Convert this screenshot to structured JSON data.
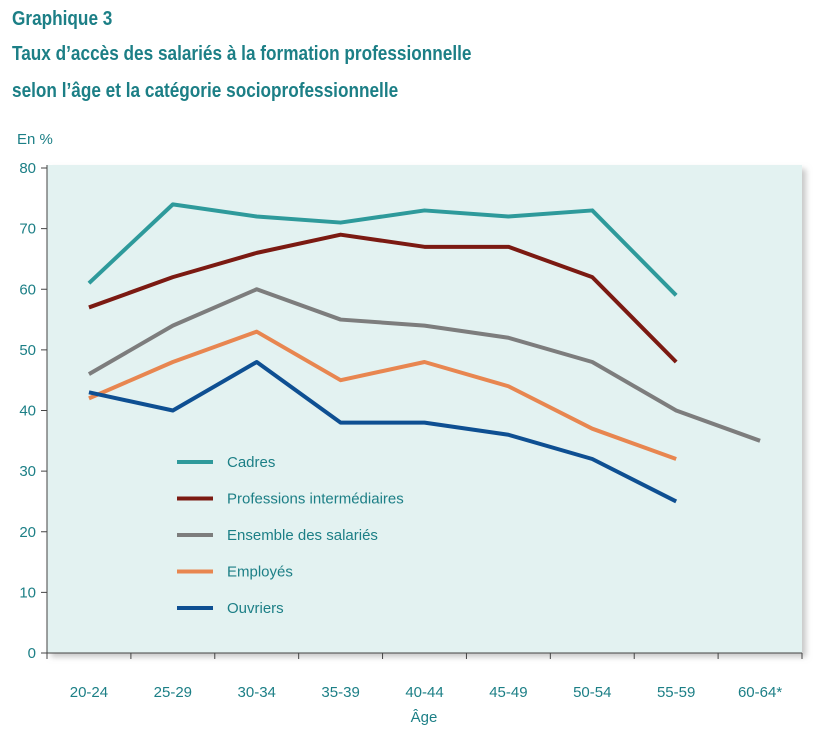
{
  "header": {
    "label": "Graphique 3",
    "title_line1": "Taux d’accès des salariés à la formation professionnelle",
    "title_line2": "selon l’âge et la catégorie socioprofessionnelle"
  },
  "chart_data": {
    "type": "line",
    "ylabel": "En %",
    "xlabel": "Âge",
    "ylim": [
      0,
      80
    ],
    "yticks": [
      0,
      10,
      20,
      30,
      40,
      50,
      60,
      70,
      80
    ],
    "categories": [
      "20-24",
      "25-29",
      "30-34",
      "35-39",
      "40-44",
      "45-49",
      "50-54",
      "55-59",
      "60-64*"
    ],
    "grid": false,
    "legend_position": "inside-left",
    "series": [
      {
        "name": "Cadres",
        "color": "#2e9a9b",
        "values": [
          61,
          74,
          72,
          71,
          73,
          72,
          73,
          59,
          null
        ]
      },
      {
        "name": "Professions intermédiaires",
        "color": "#7b1a12",
        "values": [
          57,
          62,
          66,
          69,
          67,
          67,
          62,
          48,
          null
        ]
      },
      {
        "name": "Ensemble des salariés",
        "color": "#7d7d7d",
        "values": [
          46,
          54,
          60,
          55,
          54,
          52,
          48,
          40,
          35
        ]
      },
      {
        "name": "Employés",
        "color": "#e88650",
        "values": [
          42,
          48,
          53,
          45,
          48,
          44,
          37,
          32,
          null
        ]
      },
      {
        "name": "Ouvriers",
        "color": "#0e4f92",
        "values": [
          43,
          40,
          48,
          38,
          38,
          36,
          32,
          25,
          null
        ]
      }
    ]
  }
}
